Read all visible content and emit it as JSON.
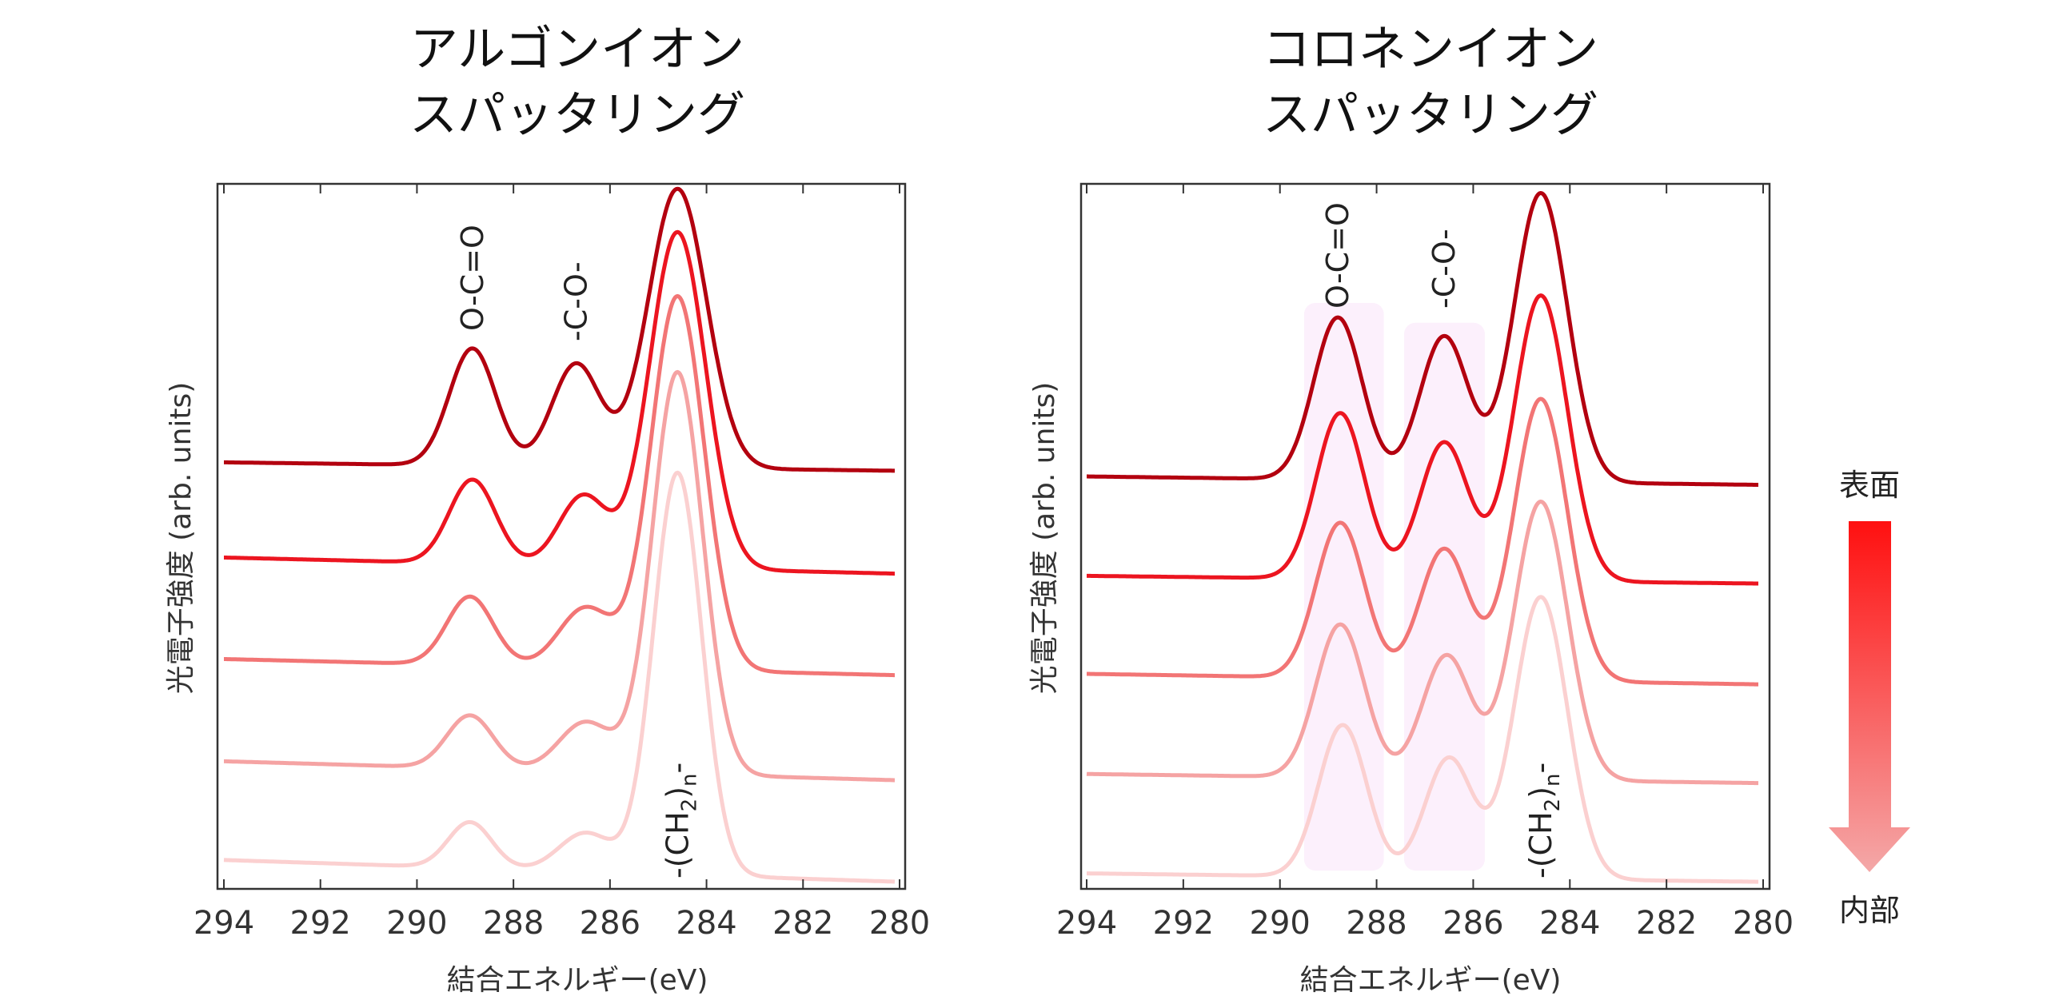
{
  "legend": {
    "top_label": "表面",
    "bottom_label": "内部",
    "gradient_colors": [
      "#ff1010",
      "#f4a8a8"
    ]
  },
  "chart_data": [
    {
      "type": "line",
      "title_lines": [
        "アルゴンイオン",
        "スパッタリング"
      ],
      "xlabel": "結合エネルギー(eV)",
      "ylabel": "光電子強度 (arb. units)",
      "xlim": [
        294,
        280
      ],
      "ylim": [
        0,
        100
      ],
      "x_ticks": [
        294,
        292,
        290,
        288,
        286,
        284,
        282,
        280
      ],
      "grid": false,
      "annotations": [
        {
          "text": "O-C=O",
          "x": 288.85
        },
        {
          "text": "-C-O-",
          "x": 286.7
        },
        {
          "text_parts": [
            "-(CH",
            "2",
            ")",
            "n",
            "-"
          ],
          "x": 284.6
        }
      ],
      "shaded_ranges": [],
      "series": [
        {
          "color": "#b3000f",
          "baseline": [
            60.5,
            59.3
          ],
          "peaks": [
            [
              288.85,
              16.6,
              0.48
            ],
            [
              286.7,
              14.6,
              0.5
            ],
            [
              284.6,
              39.6,
              0.6
            ]
          ]
        },
        {
          "color": "#ec1520",
          "baseline": [
            47.0,
            44.7
          ],
          "peaks": [
            [
              288.85,
              11.9,
              0.48
            ],
            [
              286.55,
              10.0,
              0.5
            ],
            [
              284.6,
              47.7,
              0.58
            ]
          ]
        },
        {
          "color": "#f27575",
          "baseline": [
            32.6,
            30.3
          ],
          "peaks": [
            [
              288.9,
              9.7,
              0.48
            ],
            [
              286.5,
              8.5,
              0.55
            ],
            [
              284.6,
              53.0,
              0.55
            ]
          ]
        },
        {
          "color": "#f5a3a3",
          "baseline": [
            18.1,
            15.4
          ],
          "peaks": [
            [
              288.9,
              7.5,
              0.48
            ],
            [
              286.5,
              7.0,
              0.55
            ],
            [
              284.6,
              57.0,
              0.52
            ]
          ]
        },
        {
          "color": "#fbd0d0",
          "baseline": [
            4.1,
            1.0
          ],
          "peaks": [
            [
              288.9,
              6.5,
              0.45
            ],
            [
              286.5,
              5.5,
              0.55
            ],
            [
              284.6,
              57.0,
              0.5
            ]
          ]
        }
      ]
    },
    {
      "type": "line",
      "title_lines": [
        "コロネンイオン",
        "スパッタリング"
      ],
      "xlabel": "結合エネルギー(eV)",
      "ylabel": "光電子強度 (arb. units)",
      "xlim": [
        294,
        280
      ],
      "ylim": [
        0,
        100
      ],
      "x_ticks": [
        294,
        292,
        290,
        288,
        286,
        284,
        282,
        280
      ],
      "grid": false,
      "annotations": [
        {
          "text": "O-C=O",
          "x": 288.8
        },
        {
          "text": "-C-O-",
          "x": 286.6
        },
        {
          "text_parts": [
            "-(CH",
            "2",
            ")",
            "n",
            "-"
          ],
          "x": 284.6
        }
      ],
      "shaded_ranges": [
        {
          "x": [
            289.5,
            287.85
          ],
          "y": [
            2.6,
            83.1
          ],
          "color": "#fcf0fc"
        },
        {
          "x": [
            287.43,
            285.76
          ],
          "y": [
            2.6,
            80.3
          ],
          "color": "#fcf0fc"
        }
      ],
      "series": [
        {
          "color": "#b3000f",
          "baseline": [
            58.5,
            57.3
          ],
          "peaks": [
            [
              288.8,
              23.0,
              0.5
            ],
            [
              286.6,
              20.5,
              0.5
            ],
            [
              284.6,
              41.0,
              0.55
            ]
          ]
        },
        {
          "color": "#ec1520",
          "baseline": [
            44.4,
            43.3
          ],
          "peaks": [
            [
              288.75,
              23.5,
              0.5
            ],
            [
              286.6,
              19.5,
              0.5
            ],
            [
              284.6,
              40.5,
              0.55
            ]
          ]
        },
        {
          "color": "#f27575",
          "baseline": [
            30.5,
            29.0
          ],
          "peaks": [
            [
              288.75,
              22.0,
              0.5
            ],
            [
              286.6,
              18.5,
              0.5
            ],
            [
              284.6,
              40.0,
              0.55
            ]
          ]
        },
        {
          "color": "#f5a3a3",
          "baseline": [
            16.3,
            15.0
          ],
          "peaks": [
            [
              288.75,
              21.7,
              0.5
            ],
            [
              286.55,
              17.5,
              0.5
            ],
            [
              284.6,
              39.5,
              0.55
            ]
          ]
        },
        {
          "color": "#fbd0d0",
          "baseline": [
            2.2,
            1.0
          ],
          "peaks": [
            [
              288.7,
              21.5,
              0.5
            ],
            [
              286.5,
              17.0,
              0.5
            ],
            [
              284.6,
              40.0,
              0.55
            ]
          ]
        }
      ]
    }
  ]
}
